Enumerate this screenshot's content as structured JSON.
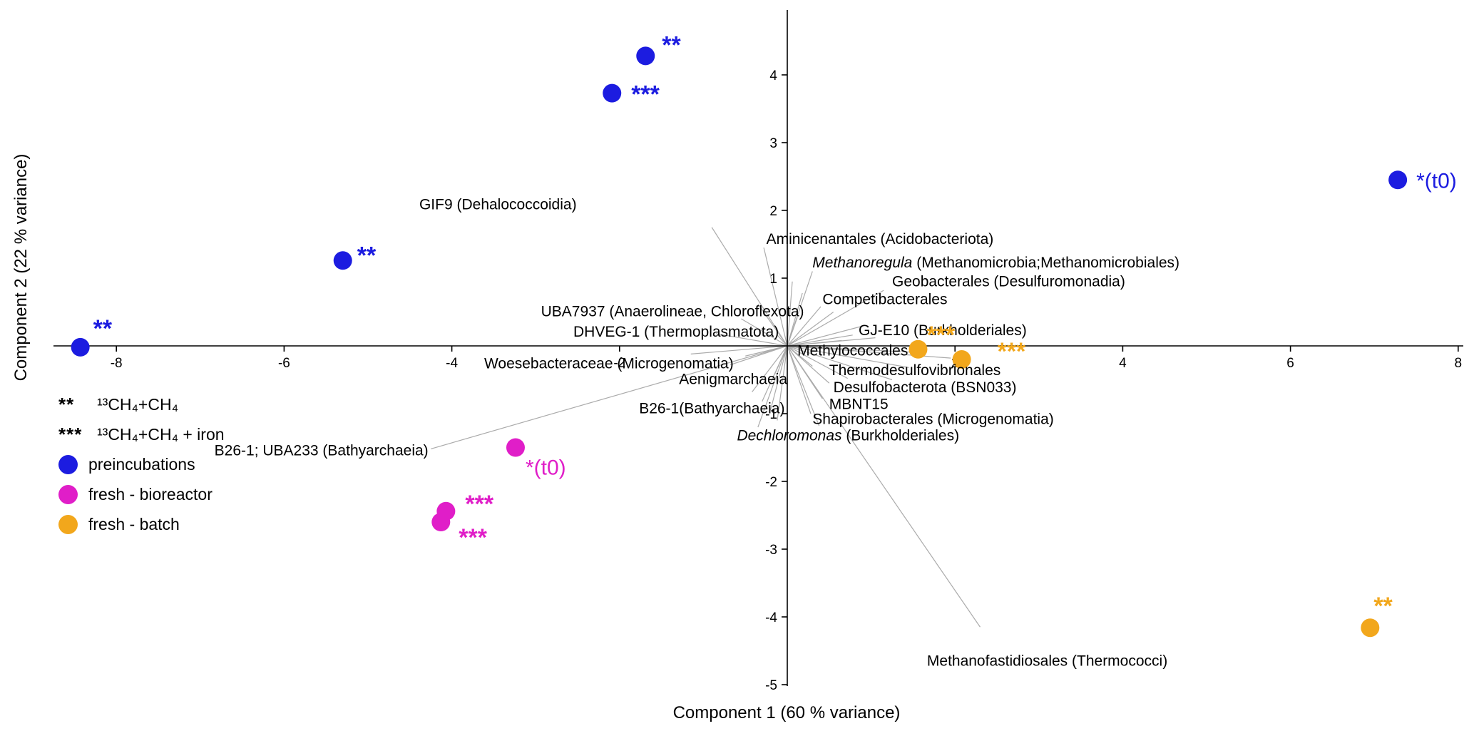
{
  "chart_data": {
    "type": "scatter",
    "title": "",
    "xlabel": "Component 1 (60 % variance)",
    "ylabel": "Component 2 (22 % variance)",
    "xlim": [
      -8.8,
      8.1
    ],
    "ylim": [
      -5.1,
      5.0
    ],
    "grid": false,
    "axis_style": "cross-at-origin",
    "x_ticks": [
      -8,
      -6,
      -4,
      -2,
      2,
      4,
      6,
      8
    ],
    "y_ticks": [
      4,
      3,
      2,
      1,
      -1,
      -2,
      -3,
      -4,
      -5
    ],
    "colors": {
      "preincubations": "#1c1ce0",
      "fresh_bioreactor": "#e01ec8",
      "fresh_batch": "#f2a71c",
      "loading_vector": "#ababab",
      "axis": "#000000"
    },
    "series": [
      {
        "name": "preincubations",
        "color_key": "preincubations",
        "points": [
          {
            "x": -1.69,
            "y": 4.28,
            "ann": "**",
            "ax": 23,
            "ay": -4,
            "ann_size": 34,
            "ann_weight": 700
          },
          {
            "x": -2.09,
            "y": 3.73,
            "ann": "***",
            "ax": 27,
            "ay": 13,
            "ann_size": 34,
            "ann_weight": 700
          },
          {
            "x": 7.28,
            "y": 2.45,
            "ann": "*(t0)",
            "ax": 26,
            "ay": 11,
            "ann_size": 30,
            "ann_weight": 500
          },
          {
            "x": -5.3,
            "y": 1.26,
            "ann": "**",
            "ax": 20,
            "ay": 4,
            "ann_size": 34,
            "ann_weight": 700
          },
          {
            "x": -8.43,
            "y": -0.02,
            "ann": "**",
            "ax": 18,
            "ay": -15,
            "ann_size": 34,
            "ann_weight": 700
          }
        ]
      },
      {
        "name": "fresh - bioreactor",
        "color_key": "fresh_bioreactor",
        "points": [
          {
            "x": -3.24,
            "y": -1.5,
            "ann": "*(t0)",
            "ax": 14,
            "ay": 38,
            "ann_size": 30,
            "ann_weight": 500
          },
          {
            "x": -4.07,
            "y": -2.44,
            "ann": "***",
            "ax": 27,
            "ay": 1,
            "ann_size": 34,
            "ann_weight": 700
          },
          {
            "x": -4.13,
            "y": -2.6,
            "ann": "***",
            "ax": 25,
            "ay": 33,
            "ann_size": 34,
            "ann_weight": 700
          }
        ]
      },
      {
        "name": "fresh - batch",
        "color_key": "fresh_batch",
        "points": [
          {
            "x": 1.56,
            "y": -0.05,
            "ann": "***",
            "ax": 12,
            "ay": -9,
            "ann_size": 34,
            "ann_weight": 700
          },
          {
            "x": 2.08,
            "y": -0.2,
            "ann": "***",
            "ax": 50,
            "ay": 0,
            "ann_size": 34,
            "ann_weight": 700
          },
          {
            "x": 6.95,
            "y": -4.16,
            "ann": "**",
            "ax": 5,
            "ay": -19,
            "ann_size": 34,
            "ann_weight": 700
          }
        ]
      }
    ],
    "loadings": [
      {
        "ex": -0.9,
        "ey": 1.75,
        "lx": -3.45,
        "ly": 2.08,
        "anchor": "middle",
        "italic": "",
        "text": "GIF9 (Dehalococcoidia)"
      },
      {
        "ex": -0.28,
        "ey": 1.45,
        "lx": -0.25,
        "ly": 1.57,
        "anchor": "start",
        "italic": "",
        "text": "Aminicenantales (Acidobacteriota)"
      },
      {
        "ex": 0.3,
        "ey": 1.1,
        "lx": 0.3,
        "ly": 1.22,
        "anchor": "start",
        "italic": "Methanoregula",
        "text": " (Methanomicrobia;Methanomicrobiales)"
      },
      {
        "ex": 1.15,
        "ey": 0.82,
        "lx": 1.25,
        "ly": 0.94,
        "anchor": "start",
        "italic": "",
        "text": "Geobacterales (Desulfuromonadia)"
      },
      {
        "ex": 0.4,
        "ey": 0.58,
        "lx": 0.42,
        "ly": 0.68,
        "anchor": "start",
        "italic": "",
        "text": "Competibacterales"
      },
      {
        "ex": 0.12,
        "ey": 0.42,
        "lx": 0.2,
        "ly": 0.5,
        "anchor": "end",
        "italic": "",
        "text": "UBA7937 (Anaerolineae, Chloroflexota)"
      },
      {
        "ex": -0.12,
        "ey": 0.16,
        "lx": -0.1,
        "ly": 0.2,
        "anchor": "end",
        "italic": "",
        "text": "DHVEG-1 (Thermoplasmatota)"
      },
      {
        "ex": 0.78,
        "ey": 0.16,
        "lx": 0.85,
        "ly": 0.22,
        "anchor": "start",
        "italic": "",
        "text": "GJ-E10 (Burkholderiales)"
      },
      {
        "ex": -0.68,
        "ey": -0.28,
        "lx": -0.64,
        "ly": -0.27,
        "anchor": "end",
        "italic": "",
        "text": "Woesebacteraceae (Microgenomatia)"
      },
      {
        "ex": 0.9,
        "ey": -0.08,
        "lx": 0.12,
        "ly": -0.08,
        "anchor": "start",
        "italic": "",
        "text": "Methylococcales"
      },
      {
        "ex": -0.15,
        "ey": -0.42,
        "lx": 0.0,
        "ly": -0.5,
        "anchor": "end",
        "italic": "",
        "text": "Aenigmarchaeia"
      },
      {
        "ex": 1.95,
        "ey": -0.18,
        "lx": 0.5,
        "ly": -0.37,
        "anchor": "start",
        "italic": "",
        "text": "Thermodesulfovibrionales"
      },
      {
        "ex": 0.5,
        "ey": -0.55,
        "lx": 0.55,
        "ly": -0.62,
        "anchor": "start",
        "italic": "",
        "text": "Desulfobacterota (BSN033)"
      },
      {
        "ex": 0.42,
        "ey": -0.78,
        "lx": 0.5,
        "ly": -0.87,
        "anchor": "start",
        "italic": "",
        "text": "MBNT15"
      },
      {
        "ex": -0.3,
        "ey": -0.82,
        "lx": -0.03,
        "ly": -0.93,
        "anchor": "end",
        "italic": "",
        "text": "B26-1(Bathyarchaeia)"
      },
      {
        "ex": 0.28,
        "ey": -1.0,
        "lx": 0.3,
        "ly": -1.09,
        "anchor": "start",
        "italic": "",
        "text": "Shapirobacterales (Microgenomatia)"
      },
      {
        "ex": -0.35,
        "ey": -1.2,
        "lx": -0.6,
        "ly": -1.33,
        "anchor": "start",
        "italic": "Dechloromonas",
        "text": " (Burkholderiales)"
      },
      {
        "ex": -4.25,
        "ey": -1.52,
        "lx": -4.28,
        "ly": -1.55,
        "anchor": "end",
        "italic": "",
        "text": "B26-1; UBA233 (Bathyarchaeia)"
      },
      {
        "ex": 2.3,
        "ey": -4.15,
        "lx": 3.1,
        "ly": -4.66,
        "anchor": "middle",
        "italic": "",
        "text": "Methanofastidiosales (Thermococci)"
      }
    ],
    "unlabeled_loadings": [
      [
        0.55,
        0.5
      ],
      [
        -0.35,
        0.62
      ],
      [
        0.72,
        -0.48
      ],
      [
        -0.42,
        -0.68
      ],
      [
        1.05,
        0.12
      ],
      [
        -1.15,
        -0.12
      ],
      [
        0.18,
        0.78
      ],
      [
        -0.2,
        -0.95
      ],
      [
        1.45,
        -0.32
      ],
      [
        0.92,
        0.3
      ],
      [
        -0.85,
        0.18
      ],
      [
        0.38,
        -1.18
      ],
      [
        -0.55,
        0.4
      ],
      [
        1.25,
        -0.5
      ],
      [
        0.06,
        0.95
      ],
      [
        -0.12,
        -1.1
      ],
      [
        0.65,
        0.08
      ],
      [
        -0.5,
        -0.15
      ],
      [
        1.6,
        -0.1
      ],
      [
        0.3,
        -0.3
      ]
    ]
  },
  "legend": {
    "marker_items": [
      {
        "symbol": "**",
        "label": "¹³CH₄+CH₄"
      },
      {
        "symbol": "***",
        "label": "¹³CH₄+CH₄ + iron"
      }
    ],
    "color_items": [
      {
        "label": "preincubations",
        "color_key": "preincubations"
      },
      {
        "label": "fresh - bioreactor",
        "color_key": "fresh_bioreactor"
      },
      {
        "label": "fresh - batch",
        "color_key": "fresh_batch"
      }
    ]
  }
}
